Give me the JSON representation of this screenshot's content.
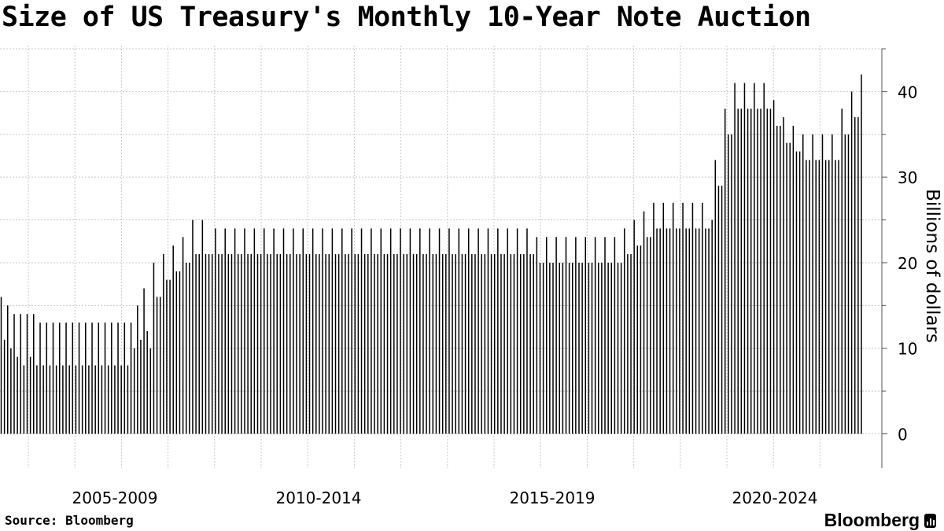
{
  "title": "Size of US Treasury's Monthly 10-Year Note Auction",
  "source": "Source: Bloomberg",
  "logo_text": "Bloomberg",
  "chart_data": {
    "type": "bar",
    "title": "Size of US Treasury's Monthly 10-Year Note Auction",
    "xlabel": "",
    "ylabel": "Billions of dollars",
    "ylim": [
      -4,
      45
    ],
    "y_ticks": [
      0,
      10,
      20,
      30,
      40
    ],
    "y_axis_position": "right",
    "grid": true,
    "x_tick_labels": [
      "2005-2009",
      "2010-2014",
      "2015-2019",
      "2020-2024"
    ],
    "bar_color": "#000000",
    "values": [
      16,
      11,
      15,
      10,
      14,
      9,
      14,
      8,
      14,
      9,
      14,
      8,
      13,
      8,
      13,
      8,
      13,
      8,
      13,
      8,
      13,
      8,
      13,
      8,
      13,
      8,
      13,
      8,
      13,
      8,
      13,
      8,
      13,
      8,
      13,
      8,
      13,
      8,
      13,
      8,
      13,
      10,
      15,
      11,
      17,
      12,
      10,
      20,
      16,
      16,
      21,
      18,
      18,
      22,
      19,
      19,
      23,
      20,
      20,
      25,
      21,
      21,
      25,
      21,
      21,
      21,
      24,
      21,
      21,
      24,
      21,
      21,
      24,
      21,
      21,
      24,
      21,
      21,
      24,
      21,
      21,
      24,
      21,
      21,
      24,
      21,
      21,
      24,
      21,
      21,
      24,
      21,
      21,
      24,
      21,
      21,
      24,
      21,
      21,
      24,
      21,
      21,
      24,
      21,
      21,
      24,
      21,
      21,
      24,
      21,
      21,
      24,
      21,
      21,
      24,
      21,
      21,
      24,
      21,
      21,
      24,
      21,
      21,
      24,
      21,
      21,
      24,
      21,
      21,
      24,
      21,
      21,
      24,
      21,
      21,
      24,
      21,
      21,
      24,
      21,
      21,
      24,
      21,
      21,
      24,
      21,
      21,
      24,
      21,
      21,
      24,
      21,
      21,
      24,
      21,
      21,
      24,
      21,
      21,
      24,
      21,
      21,
      24,
      21,
      21,
      23,
      20,
      20,
      23,
      20,
      20,
      23,
      20,
      20,
      23,
      20,
      20,
      23,
      20,
      20,
      23,
      20,
      20,
      23,
      20,
      20,
      23,
      20,
      20,
      23,
      20,
      20,
      24,
      21,
      21,
      25,
      22,
      22,
      26,
      23,
      23,
      27,
      24,
      24,
      27,
      24,
      24,
      27,
      24,
      24,
      27,
      24,
      24,
      27,
      24,
      24,
      27,
      24,
      24,
      25,
      32,
      29,
      29,
      38,
      35,
      35,
      41,
      38,
      38,
      41,
      38,
      38,
      41,
      38,
      38,
      41,
      38,
      38,
      39,
      36,
      36,
      37,
      34,
      34,
      36,
      33,
      33,
      35,
      32,
      32,
      35,
      32,
      32,
      35,
      32,
      32,
      35,
      32,
      32,
      38,
      35,
      35,
      40,
      37,
      37,
      42
    ]
  }
}
